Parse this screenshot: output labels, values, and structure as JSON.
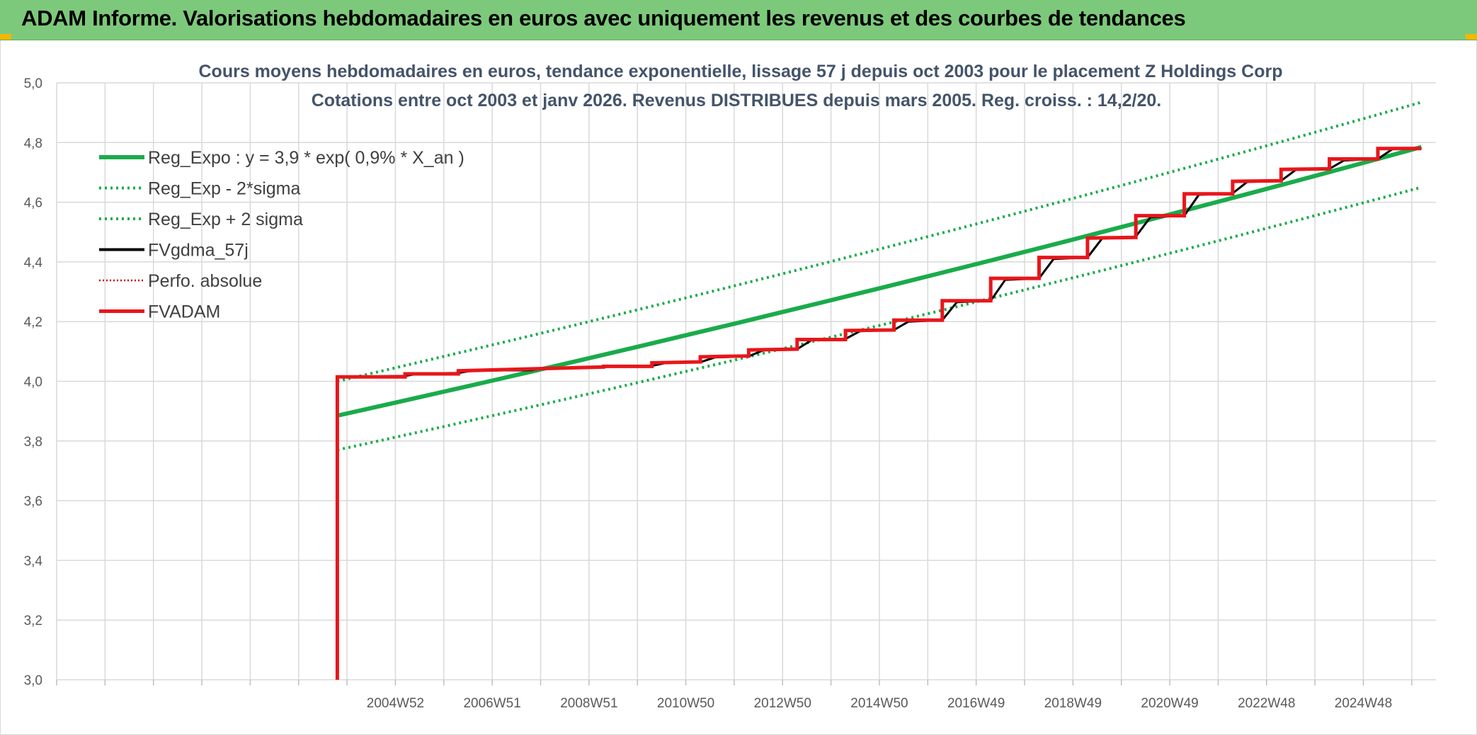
{
  "header": {
    "title": "ADAM Informe. Valorisations hebdomadaires en euros avec uniquement les revenus et des courbes de tendances",
    "background": "#7dc97b"
  },
  "chart_data": {
    "type": "line",
    "title_lines": [
      "Cours moyens hebdomadaires en euros, tendance exponentielle, lissage 57 j depuis oct 2003 pour le placement Z Holdings Corp",
      "Cotations entre oct 2003 et janv 2026. Revenus DISTRIBUES depuis mars 2005. Reg. croiss. : 14,2/20."
    ],
    "xlabel": "",
    "ylabel": "",
    "ylim": [
      3.0,
      5.0
    ],
    "xlim": [
      1998.0,
      2026.5
    ],
    "y_ticks": [
      "3,0",
      "3,2",
      "3,4",
      "3,6",
      "3,8",
      "4,0",
      "4,2",
      "4,4",
      "4,6",
      "4,8",
      "5,0"
    ],
    "y_tick_values": [
      3.0,
      3.2,
      3.4,
      3.6,
      3.8,
      4.0,
      4.2,
      4.4,
      4.6,
      4.8,
      5.0
    ],
    "x_ticks": [
      "2004W52",
      "2006W51",
      "2008W51",
      "2010W50",
      "2012W50",
      "2014W50",
      "2016W49",
      "2018W49",
      "2020W49",
      "2022W48",
      "2024W48"
    ],
    "x_tick_values": [
      2005,
      2007,
      2009,
      2011,
      2013,
      2015,
      2017,
      2019,
      2021,
      2023,
      2025
    ],
    "x_gridlines": [
      1998,
      1999,
      2000,
      2001,
      2002,
      2003,
      2004,
      2005,
      2006,
      2007,
      2008,
      2009,
      2010,
      2011,
      2012,
      2013,
      2014,
      2015,
      2016,
      2017,
      2018,
      2019,
      2020,
      2021,
      2022,
      2023,
      2024,
      2025,
      2026
    ],
    "grid": true,
    "legend_position": "top-left",
    "series": [
      {
        "name": "Reg_Expo : y = 3,9 * exp( 0,9% *  X_an )",
        "color": "#1aab4b",
        "style": "solid-thick",
        "x": [
          2003.8,
          2026.2
        ],
        "y": [
          3.885,
          4.785
        ],
        "exp_curve": true
      },
      {
        "name": "Reg_Exp - 2*sigma",
        "color": "#1aab4b",
        "style": "dotted",
        "x": [
          2003.8,
          2026.2
        ],
        "y": [
          3.77,
          4.65
        ],
        "exp_curve": true
      },
      {
        "name": "Reg_Exp + 2 sigma",
        "color": "#1aab4b",
        "style": "dotted",
        "x": [
          2003.8,
          2026.2
        ],
        "y": [
          4.0,
          4.935
        ],
        "exp_curve": true
      },
      {
        "name": "FVgdma_57j",
        "color": "#000000",
        "style": "solid",
        "x": [
          2003.8,
          2004.0,
          2005.2,
          2005.5,
          2006.3,
          2006.6,
          2007.8,
          2008.1,
          2009.3,
          2009.6,
          2010.3,
          2010.6,
          2011.3,
          2011.6,
          2012.3,
          2012.6,
          2013.3,
          2013.6,
          2014.3,
          2014.6,
          2015.3,
          2015.6,
          2016.3,
          2016.6,
          2017.3,
          2017.6,
          2018.3,
          2018.6,
          2019.3,
          2019.6,
          2020.3,
          2020.6,
          2021.3,
          2021.6,
          2022.3,
          2022.6,
          2023.3,
          2023.6,
          2024.3,
          2024.6,
          2025.3,
          2025.6,
          2026.2
        ],
        "y": [
          4.015,
          4.015,
          4.018,
          4.026,
          4.028,
          4.036,
          4.037,
          4.044,
          4.048,
          4.05,
          4.052,
          4.062,
          4.064,
          4.08,
          4.084,
          4.104,
          4.108,
          4.138,
          4.142,
          4.168,
          4.172,
          4.2,
          4.205,
          4.265,
          4.27,
          4.34,
          4.345,
          4.41,
          4.415,
          4.478,
          4.485,
          4.55,
          4.555,
          4.625,
          4.63,
          4.668,
          4.672,
          4.708,
          4.712,
          4.74,
          4.745,
          4.778,
          4.78
        ]
      },
      {
        "name": "Perfo. absolue",
        "color": "#c00000",
        "style": "dotted",
        "x": [],
        "y": []
      },
      {
        "name": "FVADAM",
        "color": "#e8161b",
        "style": "solid-thick-step",
        "x": [
          2003.8,
          2003.8,
          2005.2,
          2005.2,
          2006.3,
          2006.3,
          2009.3,
          2009.3,
          2010.3,
          2010.3,
          2011.3,
          2011.3,
          2012.3,
          2012.3,
          2013.3,
          2013.3,
          2014.3,
          2014.3,
          2015.3,
          2015.3,
          2016.3,
          2016.3,
          2017.3,
          2017.3,
          2018.3,
          2018.3,
          2019.3,
          2019.3,
          2020.3,
          2020.3,
          2021.3,
          2021.3,
          2022.3,
          2022.3,
          2023.3,
          2023.3,
          2024.3,
          2024.3,
          2025.3,
          2025.3,
          2026.2
        ],
        "y": [
          3.0,
          4.015,
          4.015,
          4.025,
          4.025,
          4.035,
          4.048,
          4.05,
          4.05,
          4.062,
          4.065,
          4.082,
          4.085,
          4.105,
          4.108,
          4.14,
          4.14,
          4.17,
          4.172,
          4.205,
          4.205,
          4.27,
          4.27,
          4.345,
          4.345,
          4.415,
          4.415,
          4.48,
          4.482,
          4.555,
          4.555,
          4.628,
          4.628,
          4.67,
          4.672,
          4.71,
          4.712,
          4.745,
          4.745,
          4.78,
          4.78
        ]
      }
    ]
  }
}
